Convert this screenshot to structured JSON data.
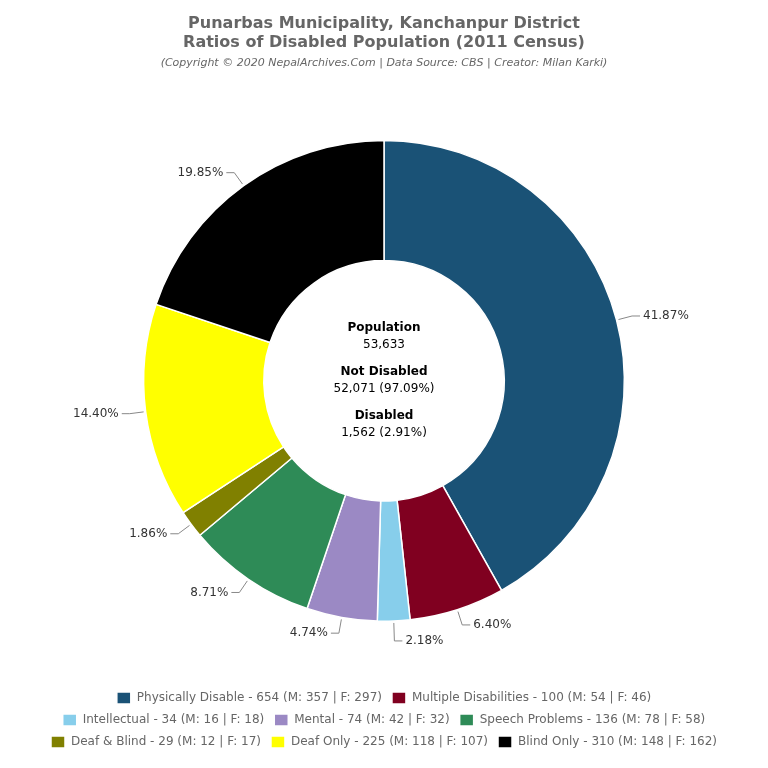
{
  "chart_data": {
    "type": "doughnut",
    "title": [
      "Punarbas Municipality, Kanchanpur District",
      "Ratios of Disabled Population (2011 Census)"
    ],
    "subtitle": "(Copyright © 2020 NepalArchives.Com | Data Source: CBS | Creator: Milan Karki)",
    "categories": [
      "Physically Disable - 654 (M: 357 | F: 297)",
      "Multiple Disabilities - 100 (M: 54 | F: 46)",
      "Intellectual - 34 (M: 16 | F: 18)",
      "Mental - 74 (M: 42 | F: 32)",
      "Speech Problems - 136 (M: 78 | F: 58)",
      "Deaf & Blind - 29 (M: 12 | F: 17)",
      "Deaf Only - 225 (M: 118 | F: 107)",
      "Blind Only - 310 (M: 148 | F: 162)"
    ],
    "values": [
      41.87,
      6.4,
      2.18,
      4.74,
      8.71,
      1.86,
      14.4,
      19.85
    ],
    "value_labels": [
      "41.87%",
      "6.40%",
      "2.18%",
      "4.74%",
      "8.71%",
      "1.86%",
      "14.40%",
      "19.85%"
    ],
    "colors": [
      "#1a5276",
      "#800020",
      "#87ceeb",
      "#9b89c4",
      "#2e8b57",
      "#808000",
      "#ffff00",
      "#000000"
    ],
    "annotations": [
      "Population",
      "53,633",
      "Not Disabled",
      "52,071 (97.09%)",
      "Disabled",
      "1,562 (2.91%)"
    ],
    "data_labels": true,
    "legend": "bottom"
  }
}
